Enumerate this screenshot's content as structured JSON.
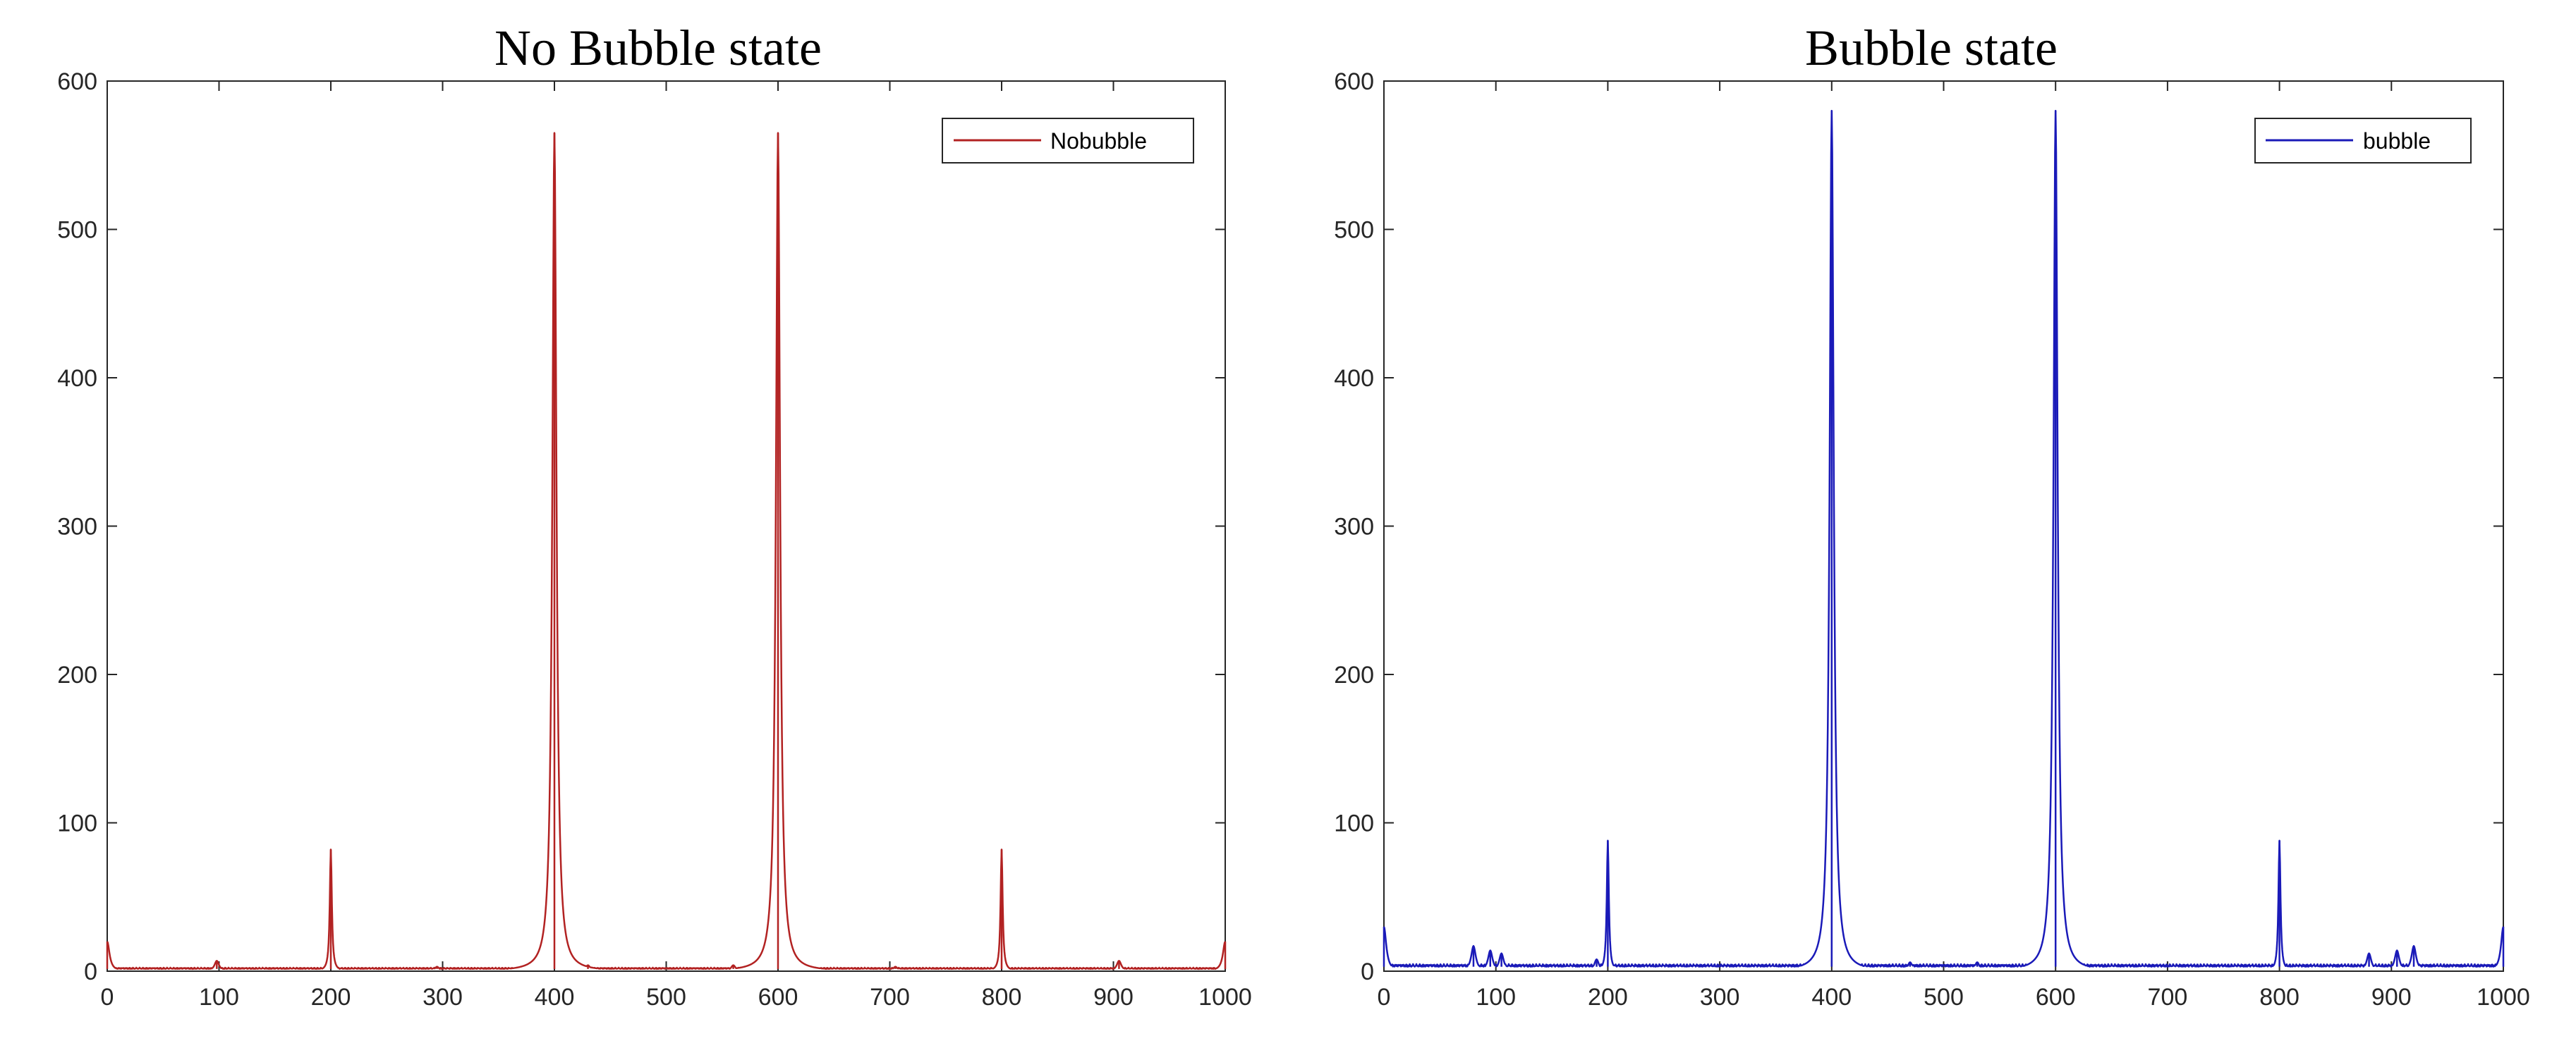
{
  "chart_data": [
    {
      "type": "line",
      "title": "No Bubble state",
      "xlim": [
        0,
        1000
      ],
      "ylim": [
        0,
        600
      ],
      "xticks": [
        0,
        100,
        200,
        300,
        400,
        500,
        600,
        700,
        800,
        900,
        1000
      ],
      "yticks": [
        0,
        100,
        200,
        300,
        400,
        500,
        600
      ],
      "xlabel": "",
      "ylabel": "",
      "grid": false,
      "legend_position": "top-right",
      "series": [
        {
          "name": "Nobubble",
          "color": "#b22222",
          "baseline": 1.5,
          "peaks": [
            {
              "x": 0,
              "y": 20
            },
            {
              "x": 98,
              "y": 7
            },
            {
              "x": 200,
              "y": 82
            },
            {
              "x": 295,
              "y": 3
            },
            {
              "x": 400,
              "y": 565
            },
            {
              "x": 430,
              "y": 4
            },
            {
              "x": 560,
              "y": 4
            },
            {
              "x": 600,
              "y": 565
            },
            {
              "x": 705,
              "y": 3
            },
            {
              "x": 800,
              "y": 82
            },
            {
              "x": 905,
              "y": 7
            },
            {
              "x": 1000,
              "y": 20
            }
          ]
        }
      ]
    },
    {
      "type": "line",
      "title": "Bubble state",
      "xlim": [
        0,
        1000
      ],
      "ylim": [
        0,
        600
      ],
      "xticks": [
        0,
        100,
        200,
        300,
        400,
        500,
        600,
        700,
        800,
        900,
        1000
      ],
      "yticks": [
        0,
        100,
        200,
        300,
        400,
        500,
        600
      ],
      "xlabel": "",
      "ylabel": "",
      "grid": false,
      "legend_position": "top-right",
      "series": [
        {
          "name": "bubble",
          "color": "#1a1ab8",
          "baseline": 3,
          "peaks": [
            {
              "x": 0,
              "y": 30
            },
            {
              "x": 80,
              "y": 17
            },
            {
              "x": 95,
              "y": 14
            },
            {
              "x": 105,
              "y": 12
            },
            {
              "x": 190,
              "y": 8
            },
            {
              "x": 200,
              "y": 88
            },
            {
              "x": 400,
              "y": 580
            },
            {
              "x": 470,
              "y": 6
            },
            {
              "x": 530,
              "y": 6
            },
            {
              "x": 600,
              "y": 580
            },
            {
              "x": 800,
              "y": 88
            },
            {
              "x": 880,
              "y": 12
            },
            {
              "x": 905,
              "y": 14
            },
            {
              "x": 920,
              "y": 17
            },
            {
              "x": 1000,
              "y": 30
            }
          ]
        }
      ]
    }
  ]
}
